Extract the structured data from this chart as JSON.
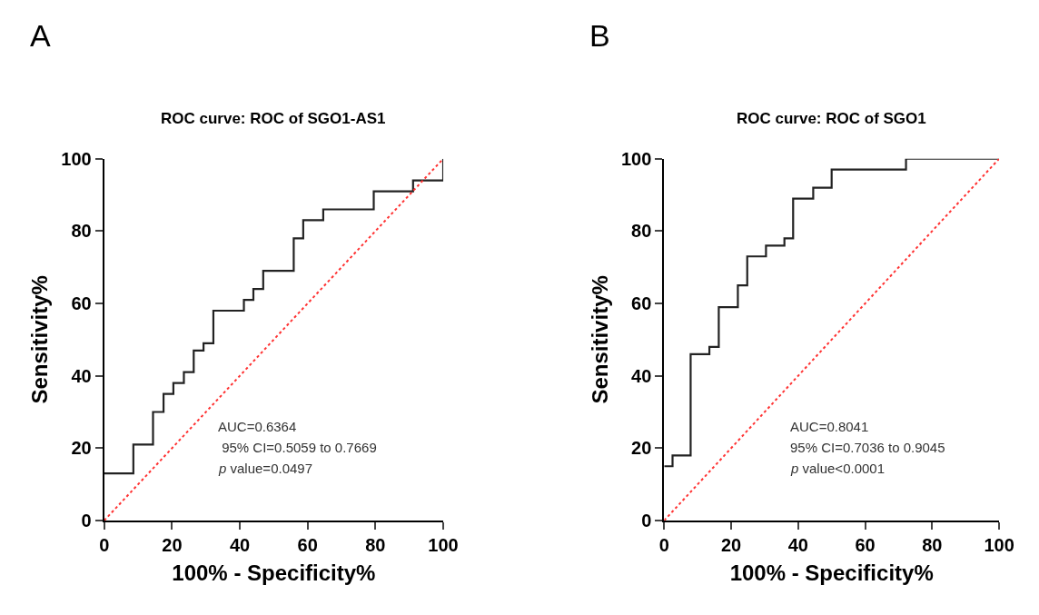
{
  "chart_data": [
    {
      "type": "step",
      "title": "ROC curve: ROC of SGO1-AS1",
      "xlabel": "100% - Specificity%",
      "ylabel": "Sensitivity%",
      "annotations": [
        "A",
        "AUC=0.6364",
        " 95% CI=0.5059 to 0.7669",
        "p value=0.0497"
      ],
      "series": [
        {
          "color": "#222222",
          "line_style": "solid",
          "x": [
            0,
            8.6,
            14.4,
            17.5,
            20.4,
            23.5,
            26.4,
            29.3,
            32.2,
            41.2,
            44.0,
            46.9,
            55.9,
            58.7,
            64.6,
            79.5,
            91.1,
            100,
            100
          ],
          "values": [
            13,
            21,
            30,
            35,
            38,
            41,
            47,
            49,
            58,
            61,
            64,
            69,
            78,
            83,
            86,
            91,
            94,
            94,
            100
          ]
        },
        {
          "type": "line",
          "color": "#ff3333",
          "line_style": "dotted",
          "x": [
            0,
            100
          ],
          "values": [
            0,
            100
          ]
        }
      ],
      "xlim": [
        0,
        100
      ],
      "ylim": [
        0,
        100
      ],
      "xticks": [
        0,
        20,
        40,
        60,
        80,
        100
      ],
      "yticks": [
        0,
        20,
        40,
        60,
        80,
        100
      ]
    },
    {
      "type": "step",
      "title": "ROC curve: ROC of SGO1",
      "xlabel": "100% - Specificity%",
      "ylabel": "Sensitivity%",
      "annotations": [
        "B",
        "AUC=0.8041",
        "95% CI=0.7036 to 0.9045",
        "p value<0.0001"
      ],
      "series": [
        {
          "color": "#222222",
          "line_style": "solid",
          "x": [
            0,
            2.5,
            7.9,
            13.5,
            16.3,
            22.0,
            24.8,
            30.4,
            35.9,
            38.5,
            44.5,
            50.0,
            72.2,
            100
          ],
          "values": [
            15,
            18,
            46,
            48,
            59,
            65,
            73,
            76,
            78,
            89,
            92,
            97,
            100,
            100
          ]
        },
        {
          "type": "line",
          "color": "#ff3333",
          "line_style": "dotted",
          "x": [
            0,
            100
          ],
          "values": [
            0,
            100
          ]
        }
      ],
      "xlim": [
        0,
        100
      ],
      "ylim": [
        0,
        100
      ],
      "xticks": [
        0,
        20,
        40,
        60,
        80,
        100
      ],
      "yticks": [
        0,
        20,
        40,
        60,
        80,
        100
      ]
    }
  ]
}
